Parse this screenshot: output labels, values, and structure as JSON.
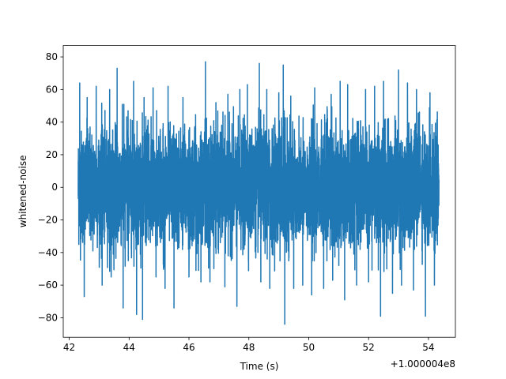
{
  "chart_data": {
    "type": "line",
    "title": "",
    "xlabel": "Time (s)",
    "ylabel": "whitened-noise",
    "x_offset_label": "+1.000004e8",
    "xlim": [
      41.8,
      54.9
    ],
    "ylim": [
      -92,
      87
    ],
    "xticks": [
      42,
      44,
      46,
      48,
      50,
      52,
      54
    ],
    "yticks": [
      -80,
      -60,
      -40,
      -20,
      0,
      20,
      40,
      60,
      80
    ],
    "grid": false,
    "legend": "none",
    "color": "#1f77b4",
    "series": [
      {
        "x_range": [
          42.3,
          54.35
        ],
        "distribution": {
          "std": 17,
          "typical_min": -45,
          "typical_max": 48
        },
        "spikes": [
          {
            "x": 42.35,
            "y": 64
          },
          {
            "x": 42.6,
            "y": 55
          },
          {
            "x": 42.9,
            "y": 62
          },
          {
            "x": 43.1,
            "y": 61
          },
          {
            "x": 43.35,
            "y": 60
          },
          {
            "x": 43.6,
            "y": 73
          },
          {
            "x": 44.15,
            "y": 65
          },
          {
            "x": 44.5,
            "y": 55
          },
          {
            "x": 44.8,
            "y": 61
          },
          {
            "x": 45.3,
            "y": 62
          },
          {
            "x": 45.8,
            "y": 55
          },
          {
            "x": 46.55,
            "y": 77
          },
          {
            "x": 46.9,
            "y": 52
          },
          {
            "x": 47.3,
            "y": 57
          },
          {
            "x": 47.7,
            "y": 60
          },
          {
            "x": 47.95,
            "y": 63
          },
          {
            "x": 48.35,
            "y": 76
          },
          {
            "x": 48.6,
            "y": 60
          },
          {
            "x": 49.0,
            "y": 58
          },
          {
            "x": 49.15,
            "y": 75
          },
          {
            "x": 49.4,
            "y": 56
          },
          {
            "x": 49.8,
            "y": 56
          },
          {
            "x": 50.2,
            "y": 61
          },
          {
            "x": 50.5,
            "y": 54
          },
          {
            "x": 50.75,
            "y": 57
          },
          {
            "x": 51.05,
            "y": 65
          },
          {
            "x": 51.3,
            "y": 63
          },
          {
            "x": 51.6,
            "y": 75
          },
          {
            "x": 51.9,
            "y": 60
          },
          {
            "x": 52.2,
            "y": 62
          },
          {
            "x": 52.5,
            "y": 65
          },
          {
            "x": 52.8,
            "y": 79
          },
          {
            "x": 53.0,
            "y": 72
          },
          {
            "x": 53.3,
            "y": 64
          },
          {
            "x": 53.6,
            "y": 60
          },
          {
            "x": 53.9,
            "y": 66
          },
          {
            "x": 54.05,
            "y": 58
          },
          {
            "x": 42.5,
            "y": -67
          },
          {
            "x": 43.1,
            "y": -60
          },
          {
            "x": 43.4,
            "y": -55
          },
          {
            "x": 43.8,
            "y": -74
          },
          {
            "x": 44.25,
            "y": -78
          },
          {
            "x": 44.45,
            "y": -81
          },
          {
            "x": 44.9,
            "y": -55
          },
          {
            "x": 45.2,
            "y": -62
          },
          {
            "x": 45.5,
            "y": -74
          },
          {
            "x": 46.0,
            "y": -55
          },
          {
            "x": 46.4,
            "y": -58
          },
          {
            "x": 46.7,
            "y": -58
          },
          {
            "x": 47.2,
            "y": -61
          },
          {
            "x": 47.6,
            "y": -73
          },
          {
            "x": 48.4,
            "y": -58
          },
          {
            "x": 48.7,
            "y": -62
          },
          {
            "x": 49.2,
            "y": -84
          },
          {
            "x": 49.5,
            "y": -62
          },
          {
            "x": 49.8,
            "y": -60
          },
          {
            "x": 50.1,
            "y": -66
          },
          {
            "x": 50.5,
            "y": -62
          },
          {
            "x": 50.8,
            "y": -57
          },
          {
            "x": 51.2,
            "y": -69
          },
          {
            "x": 51.6,
            "y": -60
          },
          {
            "x": 52.0,
            "y": -58
          },
          {
            "x": 52.4,
            "y": -79
          },
          {
            "x": 52.8,
            "y": -65
          },
          {
            "x": 53.1,
            "y": -60
          },
          {
            "x": 53.5,
            "y": -63
          },
          {
            "x": 53.9,
            "y": -79
          },
          {
            "x": 54.2,
            "y": -60
          }
        ]
      }
    ]
  }
}
